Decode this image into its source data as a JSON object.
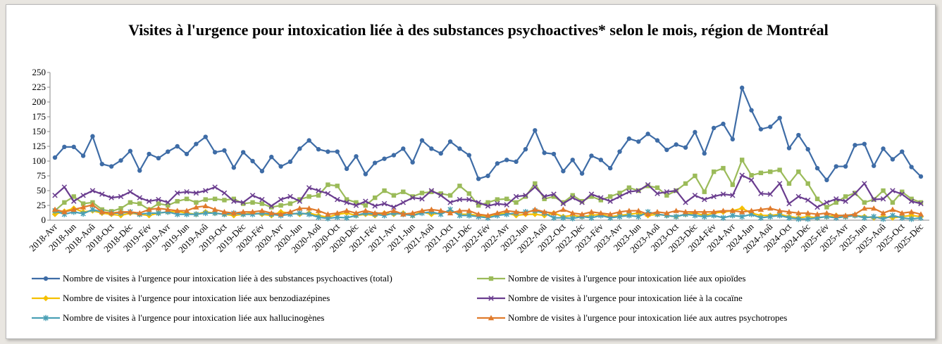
{
  "chart_data": {
    "type": "line",
    "title": "Visites à l'urgence pour intoxication liée à des substances psychoactives* selon le mois, région de Montréal",
    "categories": [
      "2018-Avr",
      null,
      "2018-Jun",
      null,
      "2018-Aoû",
      null,
      "2018-Oct",
      null,
      "2018-Déc",
      null,
      "2019-Fév",
      null,
      "2019-Avr",
      null,
      "2019-Jun",
      null,
      "2019-Aoû",
      null,
      "2019-Oct",
      null,
      "2019-Déc",
      null,
      "2020-Fév",
      null,
      "2020-Avr",
      null,
      "2020-Jun",
      null,
      "2020-Aoû",
      null,
      "2020-Oct",
      null,
      "2020-Déc",
      null,
      "2021-Fév",
      null,
      "2021-Avr",
      null,
      "2021-Jun",
      null,
      "2021-Aoû",
      null,
      "2021-Oct",
      null,
      "2021-Déc",
      null,
      "2022-Fév",
      null,
      "2022-Avr",
      null,
      "2022-Jun",
      null,
      "2022-Aoû",
      null,
      "2022-Oct",
      null,
      "2022-Déc",
      null,
      "2023-Fév",
      null,
      "2023-Avr",
      null,
      "2023-Jun",
      null,
      "2023-Aoû",
      null,
      "2023-Oct",
      null,
      "2023-Déc",
      null,
      "2024-Fév",
      null,
      "2024-Avr",
      null,
      "2024-Jun",
      null,
      "2024-Aoû",
      null,
      "2024-Oct",
      null,
      "2024-Déc",
      null,
      "2025-Fév",
      null,
      "2025-Avr",
      null,
      "2025-Jun",
      null,
      "2025-Aoû",
      null,
      "2025-Oct",
      null,
      "2025-Déc"
    ],
    "series": [
      {
        "name": "Nombre de visites à l'urgence pour intoxication liée à des substances psychoactives (total)",
        "color": "#3e6ca6",
        "marker": "circle",
        "values": [
          106,
          124,
          124,
          109,
          142,
          95,
          91,
          101,
          117,
          84,
          112,
          105,
          116,
          125,
          112,
          129,
          141,
          115,
          118,
          89,
          115,
          100,
          83,
          107,
          91,
          99,
          121,
          135,
          120,
          116,
          116,
          87,
          108,
          78,
          97,
          104,
          110,
          121,
          98,
          135,
          121,
          113,
          133,
          121,
          110,
          70,
          75,
          96,
          102,
          99,
          120,
          152,
          114,
          112,
          83,
          102,
          79,
          109,
          102,
          88,
          116,
          138,
          133,
          146,
          135,
          119,
          128,
          123,
          149,
          113,
          156,
          163,
          137,
          224,
          186,
          154,
          158,
          173,
          122,
          144,
          120,
          88,
          68,
          91,
          91,
          127,
          129,
          92,
          121,
          103,
          116,
          90,
          74
        ]
      },
      {
        "name": "Nombre de visites à l'urgence pour intoxication liée aux opioïdes",
        "color": "#9bbb59",
        "marker": "square",
        "values": [
          16,
          30,
          40,
          28,
          30,
          18,
          15,
          20,
          30,
          28,
          18,
          28,
          25,
          32,
          36,
          30,
          35,
          36,
          34,
          36,
          28,
          30,
          28,
          22,
          25,
          28,
          35,
          40,
          42,
          60,
          58,
          35,
          30,
          25,
          38,
          50,
          42,
          48,
          40,
          46,
          48,
          45,
          42,
          58,
          45,
          25,
          30,
          35,
          36,
          30,
          40,
          62,
          36,
          40,
          30,
          42,
          32,
          40,
          34,
          40,
          46,
          55,
          50,
          58,
          55,
          42,
          50,
          62,
          75,
          48,
          82,
          88,
          60,
          102,
          76,
          80,
          82,
          85,
          62,
          82,
          62,
          36,
          22,
          30,
          40,
          46,
          30,
          35,
          50,
          30,
          48,
          36,
          30
        ]
      },
      {
        "name": "Nombre de visites à l'urgence pour intoxication liée aux benzodiazépines",
        "color": "#f5c000",
        "marker": "diamond",
        "values": [
          10,
          15,
          20,
          14,
          16,
          12,
          10,
          8,
          12,
          10,
          8,
          12,
          14,
          15,
          12,
          10,
          14,
          12,
          10,
          8,
          10,
          12,
          10,
          8,
          14,
          12,
          10,
          12,
          8,
          5,
          10,
          12,
          8,
          10,
          8,
          12,
          10,
          12,
          8,
          14,
          10,
          12,
          16,
          10,
          10,
          8,
          6,
          10,
          12,
          8,
          10,
          10,
          8,
          12,
          6,
          8,
          6,
          8,
          10,
          6,
          8,
          10,
          12,
          8,
          10,
          8,
          6,
          10,
          12,
          8,
          12,
          14,
          16,
          20,
          12,
          8,
          8,
          10,
          6,
          4,
          6,
          4,
          6,
          8,
          6,
          8,
          6,
          4,
          6,
          4,
          6,
          8,
          6
        ]
      },
      {
        "name": "Nombre de visites à l'urgence pour intoxication liée à la cocaïne",
        "color": "#6a3d8f",
        "marker": "x",
        "values": [
          42,
          56,
          32,
          42,
          50,
          44,
          38,
          40,
          48,
          38,
          32,
          35,
          30,
          46,
          48,
          46,
          50,
          56,
          46,
          32,
          30,
          42,
          35,
          24,
          35,
          40,
          32,
          55,
          50,
          45,
          35,
          30,
          25,
          32,
          24,
          28,
          22,
          30,
          38,
          36,
          50,
          42,
          30,
          35,
          35,
          30,
          24,
          28,
          26,
          40,
          42,
          56,
          40,
          44,
          28,
          38,
          30,
          44,
          38,
          32,
          40,
          48,
          50,
          60,
          45,
          48,
          50,
          30,
          42,
          35,
          40,
          44,
          42,
          76,
          68,
          45,
          44,
          62,
          28,
          40,
          34,
          22,
          30,
          36,
          32,
          45,
          62,
          35,
          36,
          50,
          44,
          32,
          28
        ]
      },
      {
        "name": "Nombre de visites à l'urgence pour intoxication liée aux hallucinogènes",
        "color": "#4aa0b5",
        "marker": "star",
        "values": [
          16,
          10,
          14,
          11,
          18,
          14,
          12,
          12,
          14,
          10,
          12,
          12,
          14,
          10,
          10,
          10,
          12,
          12,
          10,
          12,
          10,
          10,
          12,
          10,
          8,
          10,
          12,
          10,
          5,
          3,
          5,
          4,
          8,
          12,
          10,
          8,
          12,
          10,
          8,
          12,
          14,
          10,
          18,
          8,
          8,
          6,
          4,
          8,
          10,
          12,
          14,
          16,
          12,
          4,
          4,
          3,
          6,
          4,
          8,
          4,
          6,
          8,
          6,
          14,
          10,
          8,
          6,
          10,
          8,
          6,
          8,
          4,
          8,
          6,
          10,
          4,
          6,
          8,
          4,
          2,
          2,
          4,
          6,
          4,
          6,
          8,
          4,
          6,
          2,
          8,
          4,
          2,
          4
        ]
      },
      {
        "name": "Nombre de visites à l'urgence pour intoxication liée aux autres psychotropes",
        "color": "#e07b2c",
        "marker": "triangle",
        "values": [
          18,
          14,
          18,
          22,
          26,
          14,
          12,
          14,
          14,
          12,
          18,
          20,
          18,
          16,
          16,
          22,
          24,
          18,
          14,
          12,
          14,
          14,
          16,
          12,
          10,
          14,
          20,
          20,
          16,
          10,
          12,
          16,
          12,
          16,
          12,
          12,
          16,
          10,
          12,
          16,
          18,
          16,
          12,
          16,
          16,
          10,
          8,
          12,
          16,
          14,
          12,
          18,
          14,
          12,
          18,
          12,
          10,
          14,
          12,
          10,
          14,
          16,
          16,
          10,
          14,
          12,
          16,
          14,
          14,
          14,
          14,
          16,
          16,
          14,
          16,
          18,
          20,
          16,
          14,
          12,
          12,
          10,
          12,
          8,
          8,
          10,
          20,
          20,
          12,
          18,
          12,
          14,
          10
        ]
      }
    ],
    "ylim": [
      0,
      250
    ],
    "yticks": [
      0,
      25,
      50,
      75,
      100,
      125,
      150,
      175,
      200,
      225,
      250
    ],
    "grid": false,
    "legend": "bottom"
  }
}
